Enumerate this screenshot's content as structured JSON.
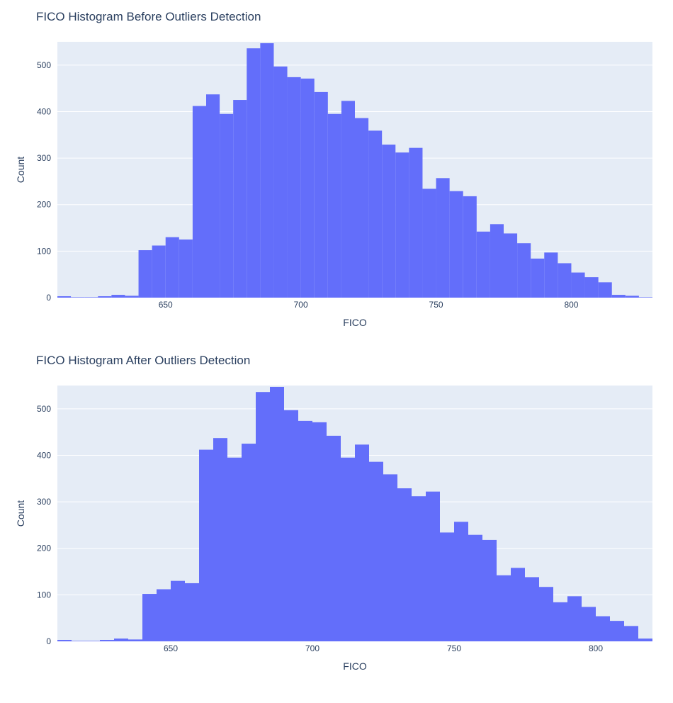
{
  "colors": {
    "plot_bg": "#E5ECF6",
    "bar": "#636EFA",
    "grid": "#ffffff",
    "text": "#2a3f5f"
  },
  "chart_data": [
    {
      "type": "bar",
      "title": "FICO Histogram Before Outliers Detection",
      "xlabel": "FICO",
      "ylabel": "Count",
      "bin_width": 5,
      "x_bin_start": [
        610,
        615,
        620,
        625,
        630,
        635,
        640,
        645,
        650,
        655,
        660,
        665,
        670,
        675,
        680,
        685,
        690,
        695,
        700,
        705,
        710,
        715,
        720,
        725,
        730,
        735,
        740,
        745,
        750,
        755,
        760,
        765,
        770,
        775,
        780,
        785,
        790,
        795,
        800,
        805,
        810,
        815,
        820,
        825
      ],
      "values": [
        3,
        1,
        1,
        3,
        6,
        4,
        102,
        112,
        130,
        125,
        412,
        437,
        395,
        425,
        536,
        547,
        497,
        474,
        471,
        442,
        395,
        423,
        386,
        359,
        329,
        312,
        322,
        234,
        257,
        229,
        218,
        142,
        158,
        138,
        117,
        84,
        97,
        74,
        54,
        44,
        33,
        6,
        4,
        1
      ],
      "xlim": [
        610,
        830
      ],
      "ylim": [
        0,
        550
      ],
      "x_ticks": [
        650,
        700,
        750,
        800
      ],
      "y_ticks": [
        0,
        100,
        200,
        300,
        400,
        500
      ],
      "grid": true
    },
    {
      "type": "bar",
      "title": "FICO Histogram After Outliers Detection",
      "xlabel": "FICO",
      "ylabel": "Count",
      "bin_width": 5,
      "x_bin_start": [
        610,
        615,
        620,
        625,
        630,
        635,
        640,
        645,
        650,
        655,
        660,
        665,
        670,
        675,
        680,
        685,
        690,
        695,
        700,
        705,
        710,
        715,
        720,
        725,
        730,
        735,
        740,
        745,
        750,
        755,
        760,
        765,
        770,
        775,
        780,
        785,
        790,
        795,
        800,
        805,
        810,
        815
      ],
      "values": [
        3,
        1,
        1,
        3,
        6,
        4,
        102,
        112,
        130,
        125,
        412,
        437,
        395,
        425,
        536,
        547,
        497,
        474,
        471,
        442,
        395,
        423,
        386,
        359,
        329,
        312,
        322,
        234,
        257,
        229,
        218,
        142,
        158,
        138,
        117,
        84,
        97,
        74,
        54,
        44,
        33,
        6
      ],
      "xlim": [
        610,
        820
      ],
      "ylim": [
        0,
        550
      ],
      "x_ticks": [
        650,
        700,
        750,
        800
      ],
      "y_ticks": [
        0,
        100,
        200,
        300,
        400,
        500
      ],
      "grid": true
    }
  ]
}
